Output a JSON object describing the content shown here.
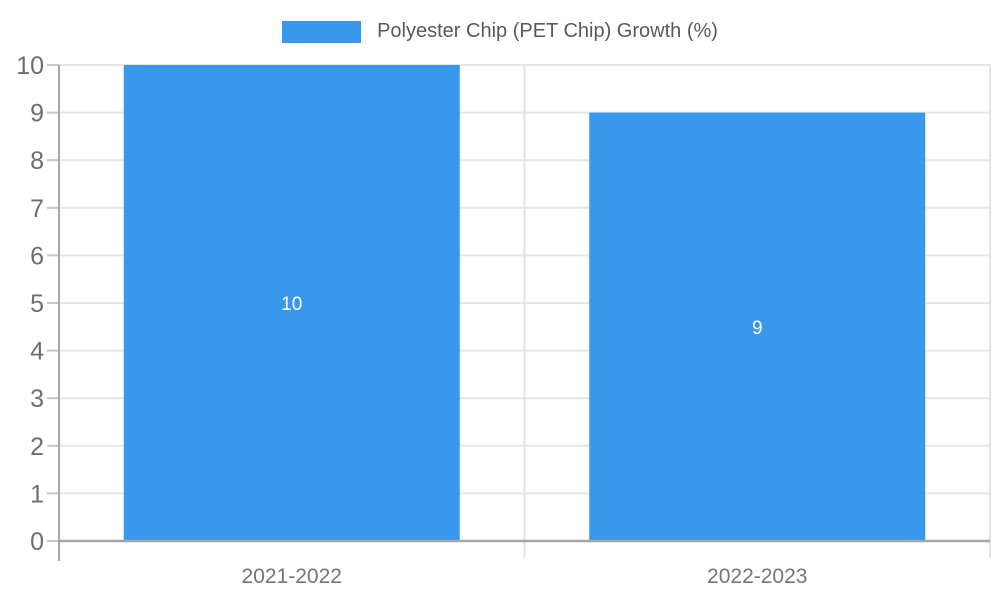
{
  "legend": {
    "label": "Polyester Chip (PET Chip) Growth (%)"
  },
  "chart_data": {
    "type": "bar",
    "title": "Polyester Chip (PET Chip) Growth (%)",
    "categories": [
      "2021-2022",
      "2022-2023"
    ],
    "series": [
      {
        "name": "Polyester Chip (PET Chip) Growth (%)",
        "values": [
          10,
          9
        ]
      }
    ],
    "value_labels": [
      "10",
      "9"
    ],
    "xlabel": "",
    "ylabel": "",
    "ylim": [
      0,
      10
    ],
    "yticks": [
      0,
      1,
      2,
      3,
      4,
      5,
      6,
      7,
      8,
      9,
      10
    ],
    "grid": true,
    "legend_position": "top",
    "colors": {
      "bar": "#3898EC",
      "value_label": "#FFFFFF",
      "grid_line": "#e6e6e6",
      "boundary_line": "#e2e2e2",
      "axis_line": "#a6a6a6",
      "tick_mark": "#c6c6c6",
      "y_tick_label": "#6e6e6e",
      "x_tick_label": "#757575",
      "legend_text": "#595959"
    }
  }
}
